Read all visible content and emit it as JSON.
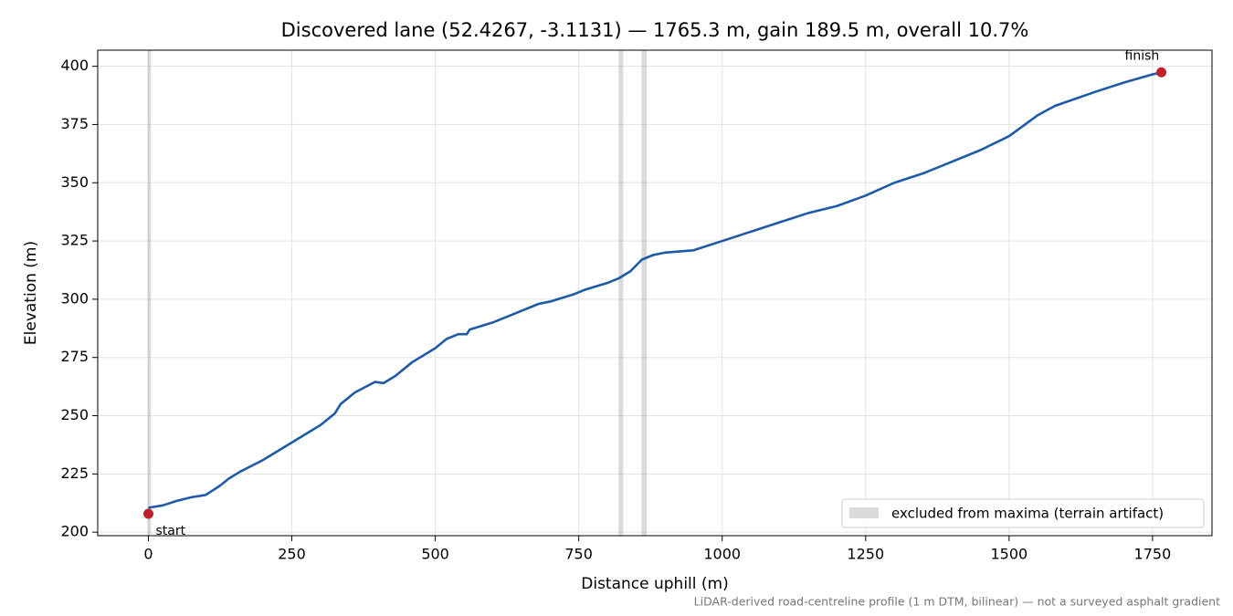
{
  "chart_data": {
    "type": "line",
    "title": "Discovered lane (52.4267, -3.1131) — 1765.3 m, gain 189.5 m, overall 10.7%",
    "xlabel": "Distance uphill (m)",
    "ylabel": "Elevation (m)",
    "footnote": "LiDAR-derived road-centreline profile (1 m DTM, bilinear) — not a surveyed asphalt gradient",
    "color": "#1f5aa6",
    "x": [
      0,
      25,
      50,
      75,
      100,
      125,
      140,
      160,
      200,
      250,
      300,
      325,
      335,
      360,
      395,
      410,
      430,
      460,
      500,
      520,
      540,
      555,
      560,
      600,
      650,
      680,
      700,
      740,
      760,
      800,
      820,
      840,
      860,
      880,
      900,
      950,
      1000,
      1100,
      1150,
      1200,
      1250,
      1300,
      1350,
      1400,
      1450,
      1500,
      1550,
      1580,
      1650,
      1700,
      1750,
      1765.3
    ],
    "values": [
      210.5,
      211.5,
      213.5,
      215,
      216,
      220,
      223,
      226,
      231,
      238.5,
      246,
      251,
      255,
      260,
      264.5,
      264,
      267,
      273,
      279,
      283,
      285,
      285,
      287,
      290,
      295,
      298,
      299,
      302,
      304,
      307,
      309,
      312,
      317,
      319,
      320,
      321,
      325,
      333,
      337,
      340,
      344.5,
      350,
      354,
      359,
      364,
      370,
      379,
      383,
      389,
      393,
      396.5,
      397.4
    ],
    "spans": {
      "label": "excluded from maxima (terrain artifact)",
      "color": "#999999",
      "ranges": [
        [
          0,
          3
        ],
        [
          821,
          826
        ],
        [
          861,
          867
        ]
      ]
    },
    "points": [
      {
        "label": "start",
        "x": 0,
        "y": 207.9
      },
      {
        "label": "finish",
        "x": 1765.3,
        "y": 397.4
      }
    ],
    "point_color": "#c0202a",
    "xlim": [
      -88.3,
      1853.6
    ],
    "ylim": [
      198.5,
      406.9
    ],
    "xticks": [
      0,
      250,
      500,
      750,
      1000,
      1250,
      1500,
      1750
    ],
    "yticks": [
      200,
      225,
      250,
      275,
      300,
      325,
      350,
      375,
      400
    ],
    "grid": true,
    "legend": "lower right"
  }
}
